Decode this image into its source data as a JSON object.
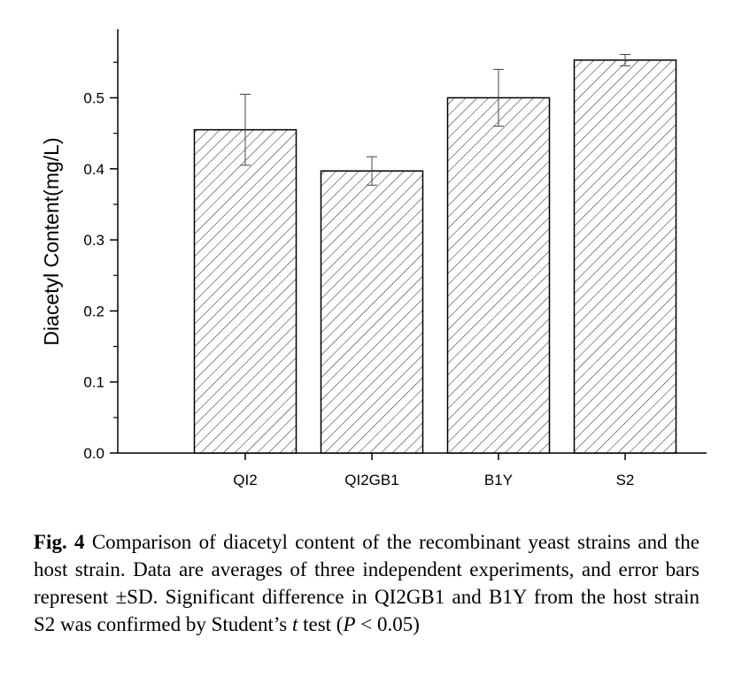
{
  "chart_data": {
    "type": "bar",
    "categories": [
      "QI2",
      "QI2GB1",
      "B1Y",
      "S2"
    ],
    "values": [
      0.455,
      0.397,
      0.5,
      0.553
    ],
    "errors": [
      0.05,
      0.02,
      0.04,
      0.008
    ],
    "ylabel": "Diacetyl Content(mg/L)",
    "xlabel": "",
    "ylim": [
      0.0,
      0.6
    ],
    "yticks": [
      "0.0",
      "0.1",
      "0.2",
      "0.3",
      "0.4",
      "0.5"
    ],
    "pattern": "diagonal-hatch",
    "colors": {
      "stroke": "#000000",
      "hatch": "#333333",
      "fill": "#ffffff"
    }
  },
  "caption": {
    "label": "Fig. 4",
    "text_part1": "Comparison of diacetyl content of the recombinant yeast strains and the host strain. Data are averages of three independent experiments, and error bars represent ±SD. Significant difference in QI2GB1 and B1Y from the host strain S2 was confirmed by Student’s ",
    "t_italic": "t",
    "text_part2": " test (",
    "p_italic": "P",
    "text_part3": " < 0.05)"
  }
}
